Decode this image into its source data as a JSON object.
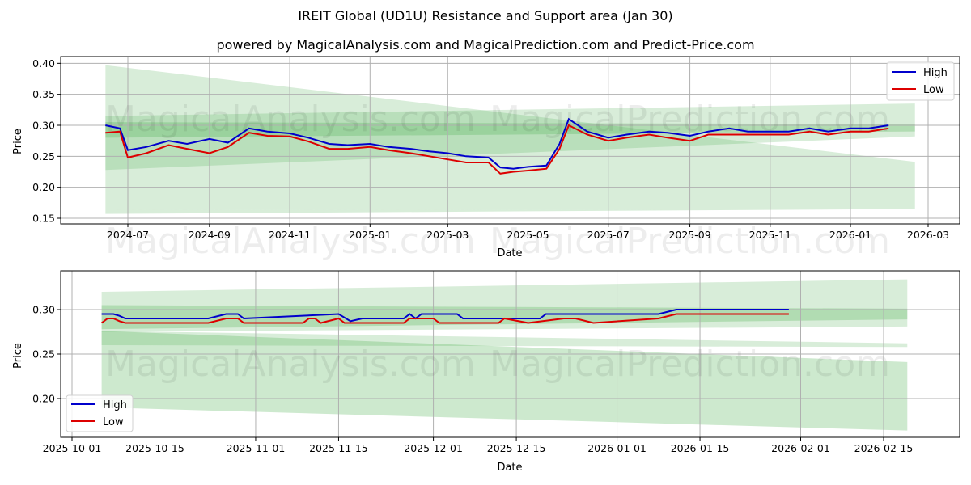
{
  "header": {
    "title": "IREIT Global (UD1U) Resistance and Support area (Jan 30)",
    "subtitle": "powered by MagicalAnalysis.com and MagicalPrediction.com and Predict-Price.com"
  },
  "watermarks": [
    "MagicalAnalysis.com",
    "MagicalPrediction.com"
  ],
  "colors": {
    "high": "#0000cc",
    "low": "#dd0000",
    "band": "#4caf50",
    "grid": "#b0b0b0"
  },
  "chart_data": [
    {
      "type": "line",
      "title": "",
      "xlabel": "Date",
      "ylabel": "Price",
      "ylim": [
        0.14,
        0.41
      ],
      "yticks": [
        "0.15",
        "0.20",
        "0.25",
        "0.30",
        "0.35",
        "0.40"
      ],
      "xticks": [
        "2024-07",
        "2024-09",
        "2024-11",
        "2025-01",
        "2025-03",
        "2025-05",
        "2025-07",
        "2025-09",
        "2025-11",
        "2026-01",
        "2026-03"
      ],
      "grid": true,
      "legend": {
        "position": "upper right",
        "entries": [
          "High",
          "Low"
        ]
      },
      "x_start": "2024-06-14",
      "x_end": "2026-01-30",
      "series": [
        {
          "name": "High",
          "x": [
            "2024-06-14",
            "2024-06-25",
            "2024-07-01",
            "2024-07-15",
            "2024-08-01",
            "2024-08-15",
            "2024-09-01",
            "2024-09-15",
            "2024-10-01",
            "2024-10-15",
            "2024-11-01",
            "2024-11-15",
            "2024-12-01",
            "2024-12-15",
            "2025-01-01",
            "2025-01-15",
            "2025-02-01",
            "2025-02-15",
            "2025-03-01",
            "2025-03-15",
            "2025-04-01",
            "2025-04-10",
            "2025-04-20",
            "2025-05-01",
            "2025-05-15",
            "2025-05-25",
            "2025-06-01",
            "2025-06-15",
            "2025-07-01",
            "2025-07-15",
            "2025-08-01",
            "2025-08-15",
            "2025-09-01",
            "2025-09-15",
            "2025-10-01",
            "2025-10-15",
            "2025-11-01",
            "2025-11-15",
            "2025-12-01",
            "2025-12-15",
            "2026-01-01",
            "2026-01-15",
            "2026-01-30"
          ],
          "values": [
            0.3,
            0.295,
            0.26,
            0.265,
            0.275,
            0.27,
            0.278,
            0.272,
            0.295,
            0.29,
            0.287,
            0.28,
            0.27,
            0.268,
            0.27,
            0.265,
            0.262,
            0.258,
            0.255,
            0.25,
            0.248,
            0.232,
            0.23,
            0.233,
            0.235,
            0.27,
            0.31,
            0.29,
            0.28,
            0.285,
            0.29,
            0.288,
            0.283,
            0.29,
            0.295,
            0.29,
            0.29,
            0.29,
            0.295,
            0.29,
            0.295,
            0.295,
            0.3
          ]
        },
        {
          "name": "Low",
          "x": [
            "2024-06-14",
            "2024-06-25",
            "2024-07-01",
            "2024-07-15",
            "2024-08-01",
            "2024-08-15",
            "2024-09-01",
            "2024-09-15",
            "2024-10-01",
            "2024-10-15",
            "2024-11-01",
            "2024-11-15",
            "2024-12-01",
            "2024-12-15",
            "2025-01-01",
            "2025-01-15",
            "2025-02-01",
            "2025-02-15",
            "2025-03-01",
            "2025-03-15",
            "2025-04-01",
            "2025-04-10",
            "2025-04-20",
            "2025-05-01",
            "2025-05-15",
            "2025-05-25",
            "2025-06-01",
            "2025-06-15",
            "2025-07-01",
            "2025-07-15",
            "2025-08-01",
            "2025-08-15",
            "2025-09-01",
            "2025-09-15",
            "2025-10-01",
            "2025-10-15",
            "2025-11-01",
            "2025-11-15",
            "2025-12-01",
            "2025-12-15",
            "2026-01-01",
            "2026-01-15",
            "2026-01-30"
          ],
          "values": [
            0.288,
            0.29,
            0.248,
            0.255,
            0.268,
            0.262,
            0.255,
            0.265,
            0.288,
            0.283,
            0.282,
            0.274,
            0.262,
            0.262,
            0.265,
            0.26,
            0.255,
            0.25,
            0.245,
            0.24,
            0.24,
            0.222,
            0.225,
            0.227,
            0.23,
            0.262,
            0.3,
            0.285,
            0.275,
            0.28,
            0.285,
            0.28,
            0.275,
            0.285,
            0.285,
            0.285,
            0.285,
            0.285,
            0.29,
            0.285,
            0.29,
            0.29,
            0.295
          ]
        }
      ],
      "bands": [
        {
          "name": "outer-resistance-band",
          "x0": "2024-06-14",
          "x1": "2026-02-19",
          "y0_top": 0.397,
          "y0_bot": 0.163,
          "y1_top": 0.241,
          "y1_bot": 0.165
        },
        {
          "name": "outer-support-band",
          "x0": "2024-06-14",
          "x1": "2026-02-19",
          "y0_top": 0.315,
          "y0_bot": 0.228,
          "y1_top": 0.335,
          "y1_bot": 0.282
        },
        {
          "name": "inner-band",
          "x0": "2024-06-14",
          "x1": "2026-02-19",
          "y0_top": 0.305,
          "y0_bot": 0.28,
          "y1_top": 0.302,
          "y1_bot": 0.29
        },
        {
          "name": "lower-outer-band",
          "x0": "2024-06-14",
          "x1": "2026-02-19",
          "y0_top": 0.163,
          "y0_bot": 0.157,
          "y1_top": 0.165,
          "y1_bot": 0.165
        }
      ]
    },
    {
      "type": "line",
      "title": "",
      "xlabel": "Date",
      "ylabel": "Price",
      "ylim": [
        0.156,
        0.339
      ],
      "yticks": [
        "0.20",
        "0.25",
        "0.30"
      ],
      "xticks": [
        "2025-10-01",
        "2025-10-15",
        "2025-11-01",
        "2025-11-15",
        "2025-12-01",
        "2025-12-15",
        "2026-01-01",
        "2026-01-15",
        "2026-02-01",
        "2026-02-15"
      ],
      "grid": true,
      "legend": {
        "position": "lower left",
        "entries": [
          "High",
          "Low"
        ]
      },
      "x_start": "2025-10-06",
      "x_end": "2026-01-30",
      "series": [
        {
          "name": "High",
          "x": [
            "2025-10-06",
            "2025-10-08",
            "2025-10-09",
            "2025-10-10",
            "2025-10-24",
            "2025-10-27",
            "2025-10-29",
            "2025-10-30",
            "2025-11-15",
            "2025-11-17",
            "2025-11-19",
            "2025-11-26",
            "2025-11-27",
            "2025-11-28",
            "2025-11-29",
            "2025-12-01",
            "2025-12-05",
            "2025-12-06",
            "2025-12-19",
            "2025-12-20",
            "2026-01-08",
            "2026-01-11",
            "2026-01-30"
          ],
          "values": [
            0.295,
            0.295,
            0.293,
            0.29,
            0.29,
            0.295,
            0.295,
            0.29,
            0.295,
            0.287,
            0.29,
            0.29,
            0.295,
            0.29,
            0.295,
            0.295,
            0.295,
            0.29,
            0.29,
            0.295,
            0.295,
            0.3,
            0.3
          ]
        },
        {
          "name": "Low",
          "x": [
            "2025-10-06",
            "2025-10-07",
            "2025-10-08",
            "2025-10-09",
            "2025-10-10",
            "2025-10-24",
            "2025-10-27",
            "2025-10-29",
            "2025-10-30",
            "2025-11-09",
            "2025-11-10",
            "2025-11-11",
            "2025-11-12",
            "2025-11-15",
            "2025-11-16",
            "2025-11-26",
            "2025-11-27",
            "2025-12-01",
            "2025-12-02",
            "2025-12-12",
            "2025-12-13",
            "2025-12-17",
            "2025-12-23",
            "2025-12-25",
            "2025-12-28",
            "2026-01-08",
            "2026-01-11",
            "2026-01-30"
          ],
          "values": [
            0.285,
            0.29,
            0.29,
            0.287,
            0.285,
            0.285,
            0.29,
            0.29,
            0.285,
            0.285,
            0.29,
            0.29,
            0.285,
            0.29,
            0.285,
            0.285,
            0.29,
            0.29,
            0.285,
            0.285,
            0.29,
            0.285,
            0.29,
            0.29,
            0.285,
            0.29,
            0.295,
            0.295
          ]
        }
      ],
      "bands": [
        {
          "name": "outer-top-band",
          "x0": "2025-10-06",
          "x1": "2026-02-19",
          "y0_top": 0.32,
          "y0_bot": 0.275,
          "y1_top": 0.334,
          "y1_bot": 0.281
        },
        {
          "name": "inner-top-band",
          "x0": "2025-10-06",
          "x1": "2026-02-19",
          "y0_top": 0.305,
          "y0_bot": 0.278,
          "y1_top": 0.301,
          "y1_bot": 0.289
        },
        {
          "name": "lower-band",
          "x0": "2025-10-06",
          "x1": "2026-02-19",
          "y0_top": 0.276,
          "y0_bot": 0.19,
          "y1_top": 0.241,
          "y1_bot": 0.164
        },
        {
          "name": "lower-inner-band",
          "x0": "2025-10-06",
          "x1": "2026-02-19",
          "y0_top": 0.276,
          "y0_bot": 0.26,
          "y1_top": 0.262,
          "y1_bot": 0.258
        }
      ]
    }
  ]
}
